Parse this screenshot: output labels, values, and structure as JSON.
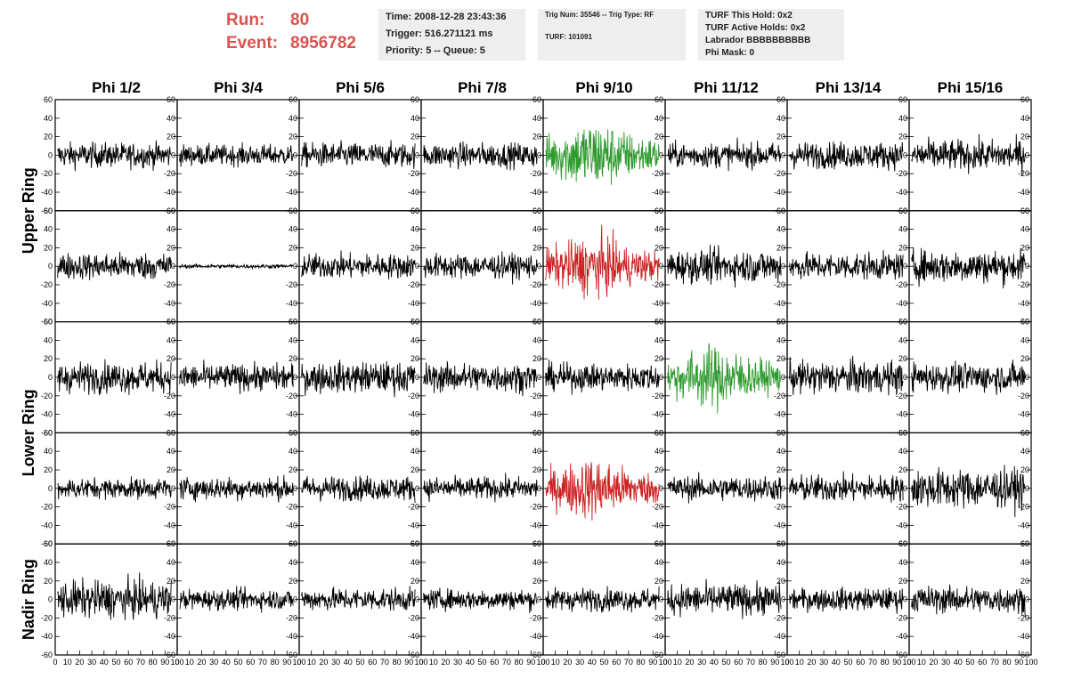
{
  "header": {
    "run_label": "Run:",
    "run_value": "80",
    "event_label": "Event:",
    "event_value": "8956782",
    "time": "Time: 2008-12-28 23:43:36",
    "trigger": "Trigger: 516.271121 ms",
    "priority": "Priority: 5 -- Queue: 5",
    "trig_num": "Trig Num: 35546 -- Trig Type: RF",
    "turf": "TURF: 101091",
    "turf_this_hold": "TURF This Hold: 0x2",
    "turf_active_holds": "TURF Active Holds: 0x2",
    "labrador": "Labrador BBBBBBBBBB",
    "phi_mask": "Phi Mask: 0",
    "colors": {
      "run_text": "#d9534f",
      "info_bg": "#eeeeee"
    }
  },
  "chart_data": {
    "type": "line",
    "columns": [
      "Phi 1/2",
      "Phi 3/4",
      "Phi 5/6",
      "Phi 7/8",
      "Phi 9/10",
      "Phi 11/12",
      "Phi 13/14",
      "Phi 15/16"
    ],
    "ring_labels": [
      {
        "label": "Upper Ring",
        "rows": [
          0,
          1
        ]
      },
      {
        "label": "Lower Ring",
        "rows": [
          2,
          3
        ]
      },
      {
        "label": "Nadir Ring",
        "rows": [
          4
        ]
      }
    ],
    "x_range": [
      0,
      100
    ],
    "y_range": [
      -60,
      60
    ],
    "y_ticks": [
      60,
      40,
      20,
      0,
      -20,
      -40,
      -60
    ],
    "y_tick_labels": [
      "60",
      "40",
      "20",
      "0",
      "-20",
      "-40",
      "-60"
    ],
    "x_ticks": [
      "0",
      "10",
      "20",
      "30",
      "40",
      "50",
      "60",
      "70",
      "80",
      "90",
      "100"
    ],
    "waveform_samples": 260,
    "amplitudes": [
      [
        12,
        10,
        12,
        12,
        30,
        12,
        13,
        15
      ],
      [
        13,
        2,
        12,
        12,
        26,
        16,
        13,
        16
      ],
      [
        15,
        13,
        15,
        14,
        13,
        27,
        16,
        14
      ],
      [
        10,
        11,
        12,
        11,
        26,
        12,
        13,
        19
      ],
      [
        18,
        10,
        11,
        10,
        11,
        15,
        11,
        13
      ]
    ],
    "trace_colors": [
      [
        "#000000",
        "#000000",
        "#000000",
        "#000000",
        "#2e9a2e",
        "#000000",
        "#000000",
        "#000000"
      ],
      [
        "#000000",
        "#000000",
        "#000000",
        "#000000",
        "#cc2222",
        "#000000",
        "#000000",
        "#000000"
      ],
      [
        "#000000",
        "#000000",
        "#000000",
        "#000000",
        "#000000",
        "#2e9a2e",
        "#000000",
        "#000000"
      ],
      [
        "#000000",
        "#000000",
        "#000000",
        "#000000",
        "#cc2222",
        "#000000",
        "#000000",
        "#000000"
      ],
      [
        "#000000",
        "#000000",
        "#000000",
        "#000000",
        "#000000",
        "#000000",
        "#000000",
        "#000000"
      ]
    ],
    "grid": false
  }
}
